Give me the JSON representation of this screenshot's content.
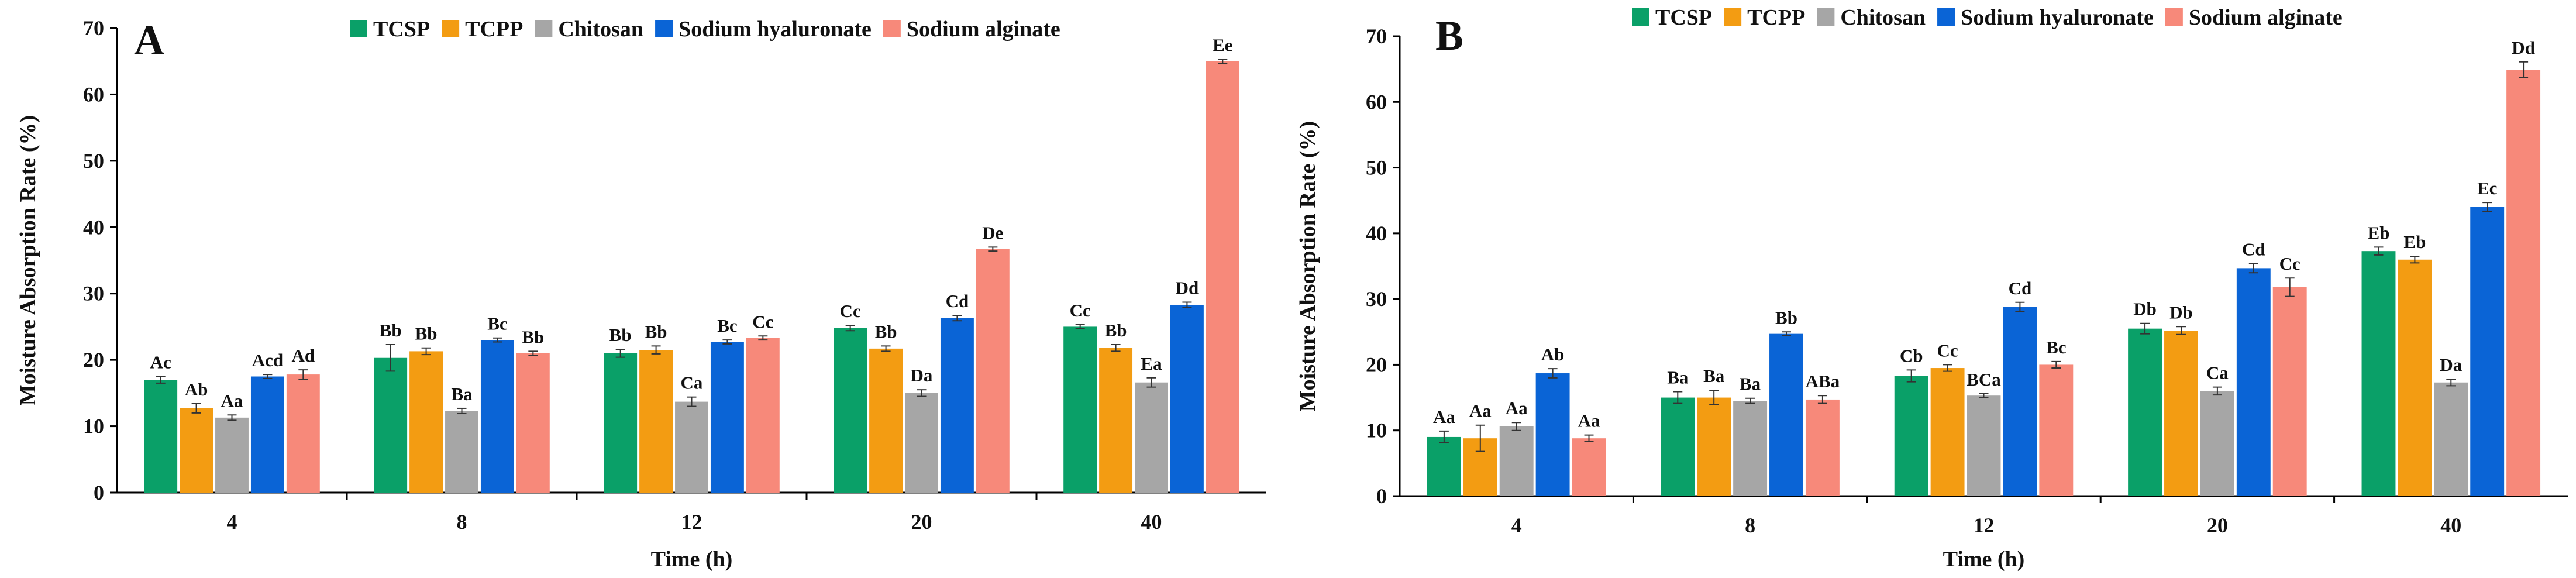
{
  "figure": {
    "series_colors": {
      "TCSP": "#0aa068",
      "TCPP": "#f39c12",
      "Chitosan": "#a6a6a6",
      "Sodium hyaluronate": "#0a64d6",
      "Sodium alginate": "#f7897a"
    }
  },
  "chart_data": [
    {
      "type": "bar",
      "panel": "A",
      "title": "",
      "xlabel": "Time (h)",
      "ylabel": "Moisture Absorption Rate (%)",
      "ylim": [
        0,
        70
      ],
      "yticks": [
        0,
        10,
        20,
        30,
        40,
        50,
        60,
        70
      ],
      "categories": [
        "4",
        "8",
        "12",
        "20",
        "40"
      ],
      "legend": [
        "TCSP",
        "TCPP",
        "Chitosan",
        "Sodium hyaluronate",
        "Sodium alginate"
      ],
      "legend_position": "top",
      "series": [
        {
          "name": "TCSP",
          "values": [
            17.0,
            20.3,
            21.0,
            24.8,
            25.0
          ],
          "errors": [
            0.5,
            2.0,
            0.6,
            0.4,
            0.3
          ],
          "labels": [
            "Ac",
            "Bb",
            "Bb",
            "Cc",
            "Cc"
          ]
        },
        {
          "name": "TCPP",
          "values": [
            12.7,
            21.3,
            21.5,
            21.7,
            21.8
          ],
          "errors": [
            0.7,
            0.5,
            0.6,
            0.4,
            0.5
          ],
          "labels": [
            "Ab",
            "Bb",
            "Bb",
            "Bb",
            "Bb"
          ]
        },
        {
          "name": "Chitosan",
          "values": [
            11.3,
            12.3,
            13.7,
            15.0,
            16.6
          ],
          "errors": [
            0.4,
            0.4,
            0.7,
            0.5,
            0.7
          ],
          "labels": [
            "Aa",
            "Ba",
            "Ca",
            "Da",
            "Ea"
          ]
        },
        {
          "name": "Sodium hyaluronate",
          "values": [
            17.5,
            23.0,
            22.7,
            26.3,
            28.3
          ],
          "errors": [
            0.3,
            0.3,
            0.3,
            0.4,
            0.4
          ],
          "labels": [
            "Acd",
            "Bc",
            "Bc",
            "Cd",
            "Dd"
          ]
        },
        {
          "name": "Sodium alginate",
          "values": [
            17.8,
            21.0,
            23.3,
            36.7,
            65.0
          ],
          "errors": [
            0.7,
            0.3,
            0.3,
            0.3,
            0.3
          ],
          "labels": [
            "Ad",
            "Bb",
            "Cc",
            "De",
            "Ee"
          ]
        }
      ]
    },
    {
      "type": "bar",
      "panel": "B",
      "title": "",
      "xlabel": "Time (h)",
      "ylabel": "Moisture Absorption Rate (%)",
      "ylim": [
        0,
        70
      ],
      "yticks": [
        0,
        10,
        20,
        30,
        40,
        50,
        60,
        70
      ],
      "categories": [
        "4",
        "8",
        "12",
        "20",
        "40"
      ],
      "legend": [
        "TCSP",
        "TCPP",
        "Chitosan",
        "Sodium hyaluronate",
        "Sodium alginate"
      ],
      "legend_position": "top",
      "series": [
        {
          "name": "TCSP",
          "values": [
            9.0,
            15.0,
            18.3,
            25.5,
            37.3
          ],
          "errors": [
            0.9,
            0.9,
            0.9,
            0.8,
            0.6
          ],
          "labels": [
            "Aa",
            "Ba",
            "Cb",
            "Db",
            "Eb"
          ]
        },
        {
          "name": "TCPP",
          "values": [
            8.8,
            15.0,
            19.5,
            25.2,
            36.0
          ],
          "errors": [
            2.0,
            1.1,
            0.5,
            0.6,
            0.5
          ],
          "labels": [
            "Aa",
            "Ba",
            "Cc",
            "Db",
            "Eb"
          ]
        },
        {
          "name": "Chitosan",
          "values": [
            10.6,
            14.5,
            15.3,
            16.0,
            17.3
          ],
          "errors": [
            0.6,
            0.4,
            0.3,
            0.6,
            0.5
          ],
          "labels": [
            "Aa",
            "Ba",
            "BCa",
            "Ca",
            "Da"
          ]
        },
        {
          "name": "Sodium hyaluronate",
          "values": [
            18.7,
            24.7,
            28.8,
            34.7,
            44.0
          ],
          "errors": [
            0.7,
            0.3,
            0.7,
            0.7,
            0.7
          ],
          "labels": [
            "Ab",
            "Bb",
            "Cd",
            "Cd",
            "Ec"
          ]
        },
        {
          "name": "Sodium alginate",
          "values": [
            8.8,
            14.7,
            20.0,
            31.8,
            64.9
          ],
          "errors": [
            0.5,
            0.6,
            0.5,
            1.4,
            1.2
          ],
          "labels": [
            "Aa",
            "ABa",
            "Bc",
            "Cc",
            "Dd"
          ]
        }
      ]
    }
  ]
}
